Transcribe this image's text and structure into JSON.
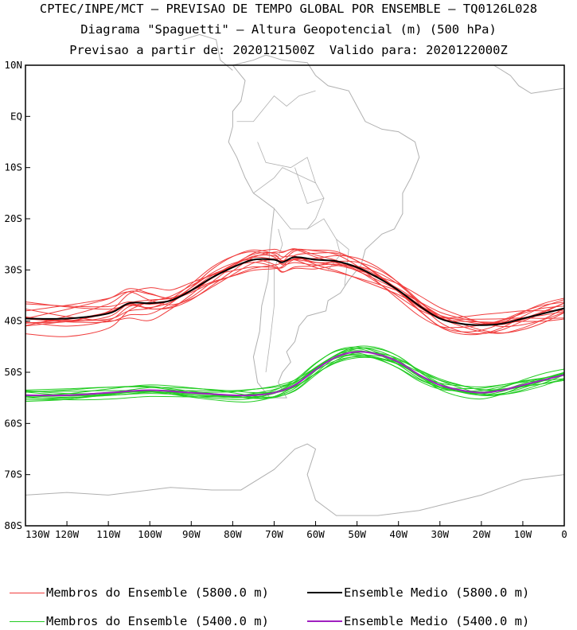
{
  "title_lines": [
    "CPTEC/INPE/MCT – PREVISAO DE TEMPO GLOBAL POR ENSEMBLE – TQ0126L028",
    "Diagrama \"Spaguetti\" – Altura Geopotencial (m) (500 hPa)",
    "Previsao a partir de: 2020121500Z  Valido para: 2020122000Z"
  ],
  "chart_data": {
    "type": "line",
    "xlim": [
      -130,
      0
    ],
    "ylim": [
      -80,
      10
    ],
    "x_ticks": [
      -130,
      -120,
      -110,
      -100,
      -90,
      -80,
      -70,
      -60,
      -50,
      -40,
      -30,
      -20,
      -10,
      0
    ],
    "x_tick_labels": [
      "130W",
      "120W",
      "110W",
      "100W",
      "90W",
      "80W",
      "70W",
      "60W",
      "50W",
      "40W",
      "30W",
      "20W",
      "10W",
      "0"
    ],
    "y_ticks": [
      10,
      0,
      -10,
      -20,
      -30,
      -40,
      -50,
      -60,
      -70,
      -80
    ],
    "y_tick_labels": [
      "10N",
      "EQ",
      "10S",
      "20S",
      "30S",
      "40S",
      "50S",
      "60S",
      "70S",
      "80S"
    ],
    "grid": false,
    "legend_position": "bottom",
    "colors": {
      "member_5800": "#f03c3c",
      "mean_5800": "#000000",
      "member_5400": "#22cc22",
      "mean_5400": "#a020c0",
      "coast": "#b0b0b0"
    },
    "series": [
      {
        "name": "Ensemble Medio (5800.0 m)",
        "color_key": "mean_5800",
        "x": [
          -130,
          -120,
          -110,
          -105,
          -100,
          -95,
          -90,
          -85,
          -80,
          -75,
          -70,
          -68,
          -65,
          -60,
          -55,
          -50,
          -45,
          -40,
          -35,
          -30,
          -25,
          -20,
          -15,
          -10,
          -5,
          0
        ],
        "y": [
          -39.5,
          -39.5,
          -38.5,
          -36.5,
          -36.5,
          -36.0,
          -34.0,
          -31.5,
          -29.5,
          -28.0,
          -28.0,
          -28.5,
          -27.5,
          -28.0,
          -28.3,
          -29.5,
          -31.5,
          -34.0,
          -37.0,
          -39.5,
          -40.5,
          -40.8,
          -40.5,
          -39.5,
          -38.5,
          -37.5
        ]
      },
      {
        "name": "Ensemble Medio (5400.0 m)",
        "color_key": "mean_5400",
        "x": [
          -130,
          -120,
          -110,
          -100,
          -90,
          -80,
          -75,
          -70,
          -65,
          -60,
          -55,
          -50,
          -45,
          -40,
          -35,
          -30,
          -25,
          -20,
          -15,
          -10,
          -5,
          0
        ],
        "y": [
          -54.5,
          -54.5,
          -54.0,
          -53.5,
          -54.0,
          -54.5,
          -54.5,
          -54.0,
          -52.5,
          -49.5,
          -47.0,
          -46.0,
          -46.5,
          -48.0,
          -50.5,
          -52.5,
          -53.5,
          -54.0,
          -53.5,
          -52.5,
          -51.5,
          -50.5
        ]
      }
    ],
    "member_sets": [
      {
        "color_key": "member_5800",
        "count": 14,
        "base_x": [
          -130,
          -120,
          -110,
          -105,
          -100,
          -95,
          -90,
          -85,
          -80,
          -75,
          -70,
          -68,
          -65,
          -60,
          -55,
          -50,
          -45,
          -40,
          -35,
          -30,
          -25,
          -20,
          -15,
          -10,
          -5,
          0
        ],
        "base_y": [
          -39.5,
          -39.5,
          -38.5,
          -36.5,
          -36.5,
          -36.0,
          -34.0,
          -31.5,
          -29.5,
          -28.0,
          -28.0,
          -28.5,
          -27.5,
          -28.0,
          -28.3,
          -29.5,
          -31.5,
          -34.0,
          -37.0,
          -39.5,
          -40.5,
          -40.8,
          -40.5,
          -39.5,
          -38.5,
          -37.5
        ],
        "spread": 2.2
      },
      {
        "color_key": "member_5400",
        "count": 14,
        "base_x": [
          -130,
          -120,
          -110,
          -100,
          -90,
          -80,
          -75,
          -70,
          -65,
          -60,
          -55,
          -50,
          -45,
          -40,
          -35,
          -30,
          -25,
          -20,
          -15,
          -10,
          -5,
          0
        ],
        "base_y": [
          -54.5,
          -54.5,
          -54.0,
          -53.5,
          -54.0,
          -54.5,
          -54.5,
          -54.0,
          -52.5,
          -49.5,
          -47.0,
          -46.0,
          -46.5,
          -48.0,
          -50.5,
          -52.5,
          -53.5,
          -54.0,
          -53.5,
          -52.5,
          -51.5,
          -50.5
        ],
        "spread": 1.3
      }
    ]
  },
  "legend": [
    {
      "label": "Membros do Ensemble (5800.0 m)",
      "color": "#f03c3c",
      "width": 1
    },
    {
      "label": "Ensemble Medio (5800.0 m)",
      "color": "#000000",
      "width": 2
    },
    {
      "label": "Membros do Ensemble (5400.0 m)",
      "color": "#22cc22",
      "width": 1
    },
    {
      "label": "Ensemble Medio (5400.0 m)",
      "color": "#a020c0",
      "width": 2
    }
  ]
}
